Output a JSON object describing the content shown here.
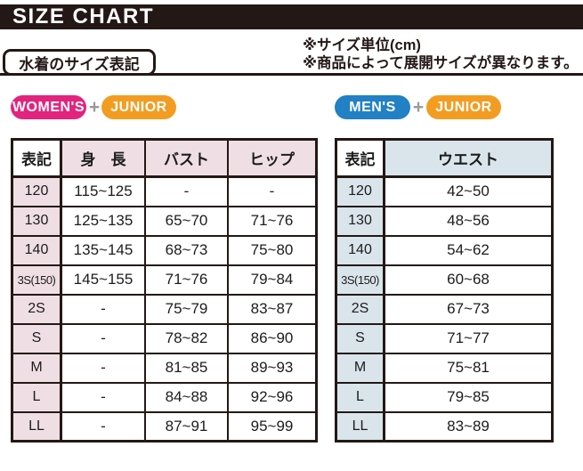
{
  "page": {
    "title": "SIZE CHART",
    "section_label": "水着のサイズ表記",
    "note_unit": "※サイズ単位(cm)",
    "note_availability": "※商品によって展開サイズが異なります。"
  },
  "colors": {
    "bar_black": "#231815",
    "border_black": "#231815",
    "womens_pink": "#e2247e",
    "mens_blue": "#2280c4",
    "junior_orange": "#f29d22",
    "plus_gray": "#9b9b9b",
    "table_pink": "#efdfe5",
    "table_blue": "#d9e5eb"
  },
  "womens_section": {
    "badge_main": "WOMEN'S",
    "plus": "+",
    "badge_junior": "JUNIOR"
  },
  "mens_section": {
    "badge_main": "MEN'S",
    "plus": "+",
    "badge_junior": "JUNIOR"
  },
  "womens_table": {
    "columns": [
      "表記",
      "身　長",
      "バスト",
      "ヒップ"
    ],
    "rows": [
      {
        "size": "120",
        "values": [
          "115~125",
          "-",
          "-"
        ]
      },
      {
        "size": "130",
        "values": [
          "125~135",
          "65~70",
          "71~76"
        ]
      },
      {
        "size": "140",
        "values": [
          "135~145",
          "68~73",
          "75~80"
        ]
      },
      {
        "size": "3S(150)",
        "values": [
          "145~155",
          "71~76",
          "79~84"
        ]
      },
      {
        "size": "2S",
        "values": [
          "-",
          "75~79",
          "83~87"
        ]
      },
      {
        "size": "S",
        "values": [
          "-",
          "78~82",
          "86~90"
        ]
      },
      {
        "size": "M",
        "values": [
          "-",
          "81~85",
          "89~93"
        ]
      },
      {
        "size": "L",
        "values": [
          "-",
          "84~88",
          "92~96"
        ]
      },
      {
        "size": "LL",
        "values": [
          "-",
          "87~91",
          "95~99"
        ]
      }
    ]
  },
  "mens_table": {
    "columns": [
      "表記",
      "ウエスト"
    ],
    "rows": [
      {
        "size": "120",
        "values": [
          "42~50"
        ]
      },
      {
        "size": "130",
        "values": [
          "48~56"
        ]
      },
      {
        "size": "140",
        "values": [
          "54~62"
        ]
      },
      {
        "size": "3S(150)",
        "values": [
          "60~68"
        ]
      },
      {
        "size": "2S",
        "values": [
          "67~73"
        ]
      },
      {
        "size": "S",
        "values": [
          "71~77"
        ]
      },
      {
        "size": "M",
        "values": [
          "75~81"
        ]
      },
      {
        "size": "L",
        "values": [
          "79~85"
        ]
      },
      {
        "size": "LL",
        "values": [
          "83~89"
        ]
      }
    ]
  }
}
